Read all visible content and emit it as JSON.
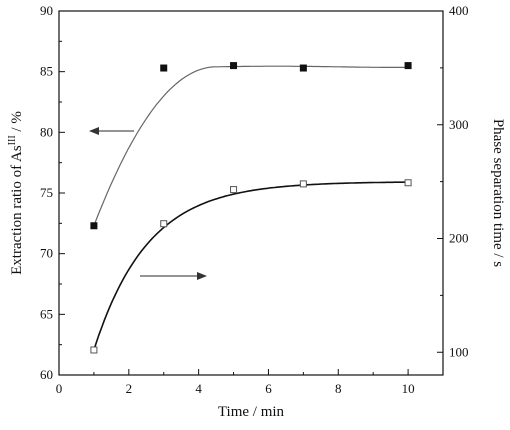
{
  "chart_data": {
    "type": "scatter",
    "x_axis": {
      "title": "Time / min",
      "range": [
        0,
        11
      ],
      "ticks": [
        0,
        2,
        4,
        6,
        8,
        10
      ],
      "tick_labels": [
        "0",
        "2",
        "4",
        "6",
        "8",
        "10"
      ]
    },
    "y_axis_left": {
      "title_main": "Extraction ratio of As",
      "title_sup": "III",
      "title_unit": " / %",
      "range": [
        60,
        90
      ],
      "ticks": [
        60,
        65,
        70,
        75,
        80,
        85,
        90
      ],
      "tick_labels": [
        "60",
        "65",
        "70",
        "75",
        "80",
        "85",
        "90"
      ]
    },
    "y_axis_right": {
      "title": "Phase separation time  / s",
      "range": [
        80,
        400
      ],
      "ticks": [
        100,
        200,
        300,
        400
      ],
      "tick_labels": [
        "100",
        "200",
        "300",
        "400"
      ]
    },
    "series": [
      {
        "axis": "left",
        "marker": "filled-square",
        "x": [
          1,
          3,
          5,
          7,
          10
        ],
        "y": [
          72.3,
          85.3,
          85.5,
          85.3,
          85.5
        ]
      },
      {
        "axis": "right",
        "marker": "open-square",
        "x": [
          1,
          3,
          5,
          7,
          10
        ],
        "y": [
          102,
          213,
          243,
          248,
          249
        ]
      }
    ],
    "annotations": [
      {
        "type": "arrow",
        "direction": "left",
        "target_axis": "left"
      },
      {
        "type": "arrow",
        "direction": "right",
        "target_axis": "right"
      }
    ],
    "grid": false
  }
}
